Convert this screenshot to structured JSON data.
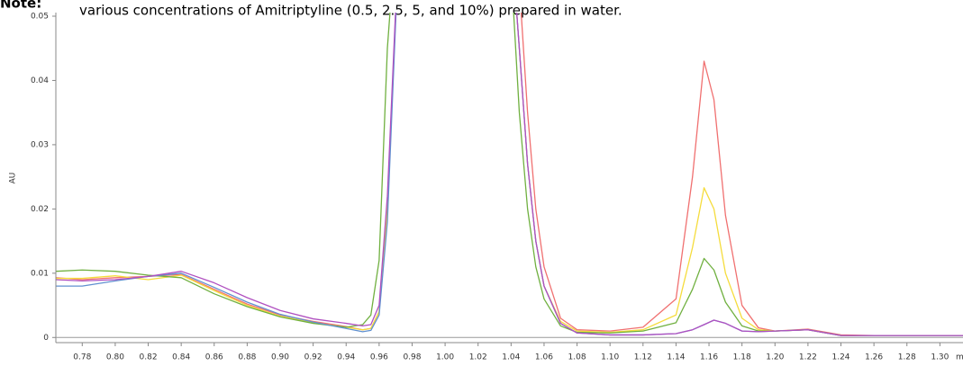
{
  "chart_data": {
    "type": "line",
    "note_label": "Note:",
    "caption": "various concentrations of Amitriptyline (0.5, 2.5, 5, and 10%) prepared in water.",
    "ylabel": "AU",
    "xlabel": "m",
    "x": [
      0.764,
      0.78,
      0.8,
      0.82,
      0.84,
      0.86,
      0.88,
      0.9,
      0.92,
      0.94,
      0.95,
      0.955,
      0.96,
      0.965,
      0.975,
      1.035,
      1.045,
      1.05,
      1.055,
      1.06,
      1.07,
      1.08,
      1.1,
      1.12,
      1.14,
      1.15,
      1.157,
      1.163,
      1.17,
      1.18,
      1.19,
      1.2,
      1.22,
      1.24,
      1.26,
      1.3,
      1.314
    ],
    "series": [
      {
        "color": "#f07070",
        "values": [
          0.0093,
          0.009,
          0.0093,
          0.0095,
          0.0098,
          0.0075,
          0.0052,
          0.0035,
          0.0025,
          0.0017,
          0.0012,
          0.0014,
          0.004,
          0.02,
          0.08,
          0.08,
          0.055,
          0.035,
          0.02,
          0.011,
          0.003,
          0.0012,
          0.001,
          0.0016,
          0.006,
          0.025,
          0.043,
          0.037,
          0.019,
          0.005,
          0.0015,
          0.001,
          0.0013,
          0.0004,
          0.0003,
          0.0003,
          0.0003
        ]
      },
      {
        "color": "#f5dc3c",
        "values": [
          0.0092,
          0.0092,
          0.0096,
          0.009,
          0.0097,
          0.0073,
          0.005,
          0.0033,
          0.0023,
          0.0016,
          0.0012,
          0.0014,
          0.004,
          0.02,
          0.08,
          0.08,
          0.045,
          0.027,
          0.015,
          0.008,
          0.0025,
          0.001,
          0.0008,
          0.0012,
          0.0035,
          0.014,
          0.0233,
          0.02,
          0.01,
          0.003,
          0.0012,
          0.001,
          0.0012,
          0.0003,
          0.0003,
          0.0003,
          0.0003
        ]
      },
      {
        "color": "#70b040",
        "values": [
          0.0103,
          0.0105,
          0.0103,
          0.0097,
          0.0093,
          0.0068,
          0.0048,
          0.0032,
          0.0022,
          0.0016,
          0.002,
          0.0035,
          0.012,
          0.045,
          0.08,
          0.08,
          0.035,
          0.02,
          0.011,
          0.006,
          0.0018,
          0.0008,
          0.0007,
          0.001,
          0.0023,
          0.0075,
          0.0123,
          0.0105,
          0.0055,
          0.0018,
          0.001,
          0.001,
          0.0012,
          0.0003,
          0.0003,
          0.0003,
          0.0003
        ]
      },
      {
        "color": "#6090d0",
        "values": [
          0.008,
          0.008,
          0.0088,
          0.0095,
          0.01,
          0.0078,
          0.0055,
          0.0036,
          0.0024,
          0.0014,
          0.0009,
          0.0011,
          0.0035,
          0.018,
          0.08,
          0.08,
          0.045,
          0.027,
          0.015,
          0.008,
          0.0022,
          0.0007,
          0.0004,
          0.0004,
          0.0006,
          0.0012,
          0.002,
          0.0027,
          0.0022,
          0.001,
          0.0009,
          0.001,
          0.0012,
          0.0003,
          0.0003,
          0.0003,
          0.0003
        ]
      },
      {
        "color": "#b050c0",
        "values": [
          0.009,
          0.0088,
          0.009,
          0.0095,
          0.0103,
          0.0085,
          0.0062,
          0.0042,
          0.0029,
          0.0022,
          0.0018,
          0.002,
          0.005,
          0.022,
          0.08,
          0.08,
          0.045,
          0.027,
          0.015,
          0.008,
          0.0022,
          0.0007,
          0.0004,
          0.0004,
          0.0006,
          0.0012,
          0.002,
          0.0027,
          0.0022,
          0.001,
          0.0009,
          0.001,
          0.0012,
          0.0003,
          0.0003,
          0.0003,
          0.0003
        ]
      }
    ],
    "xlim": [
      0.764,
      1.314
    ],
    "ylim": [
      -0.0008,
      0.05
    ],
    "xticks": [
      0.78,
      {
        "value": 0.8,
        "label": "0.80"
      },
      0.82,
      0.84,
      0.86,
      0.88,
      {
        "value": 0.9,
        "label": "0.90"
      },
      0.92,
      0.94,
      0.96,
      0.98,
      {
        "value": 1.0,
        "label": "1.00"
      },
      1.02,
      1.04,
      1.06,
      1.08,
      {
        "value": 1.1,
        "label": "1.10"
      },
      1.12,
      1.14,
      1.16,
      1.18,
      {
        "value": 1.2,
        "label": "1.20"
      },
      1.22,
      1.24,
      1.26,
      1.28,
      {
        "value": 1.3,
        "label": "1.30"
      }
    ],
    "yticks": [
      0,
      0.01,
      0.02,
      0.03,
      0.04,
      0.05
    ]
  }
}
